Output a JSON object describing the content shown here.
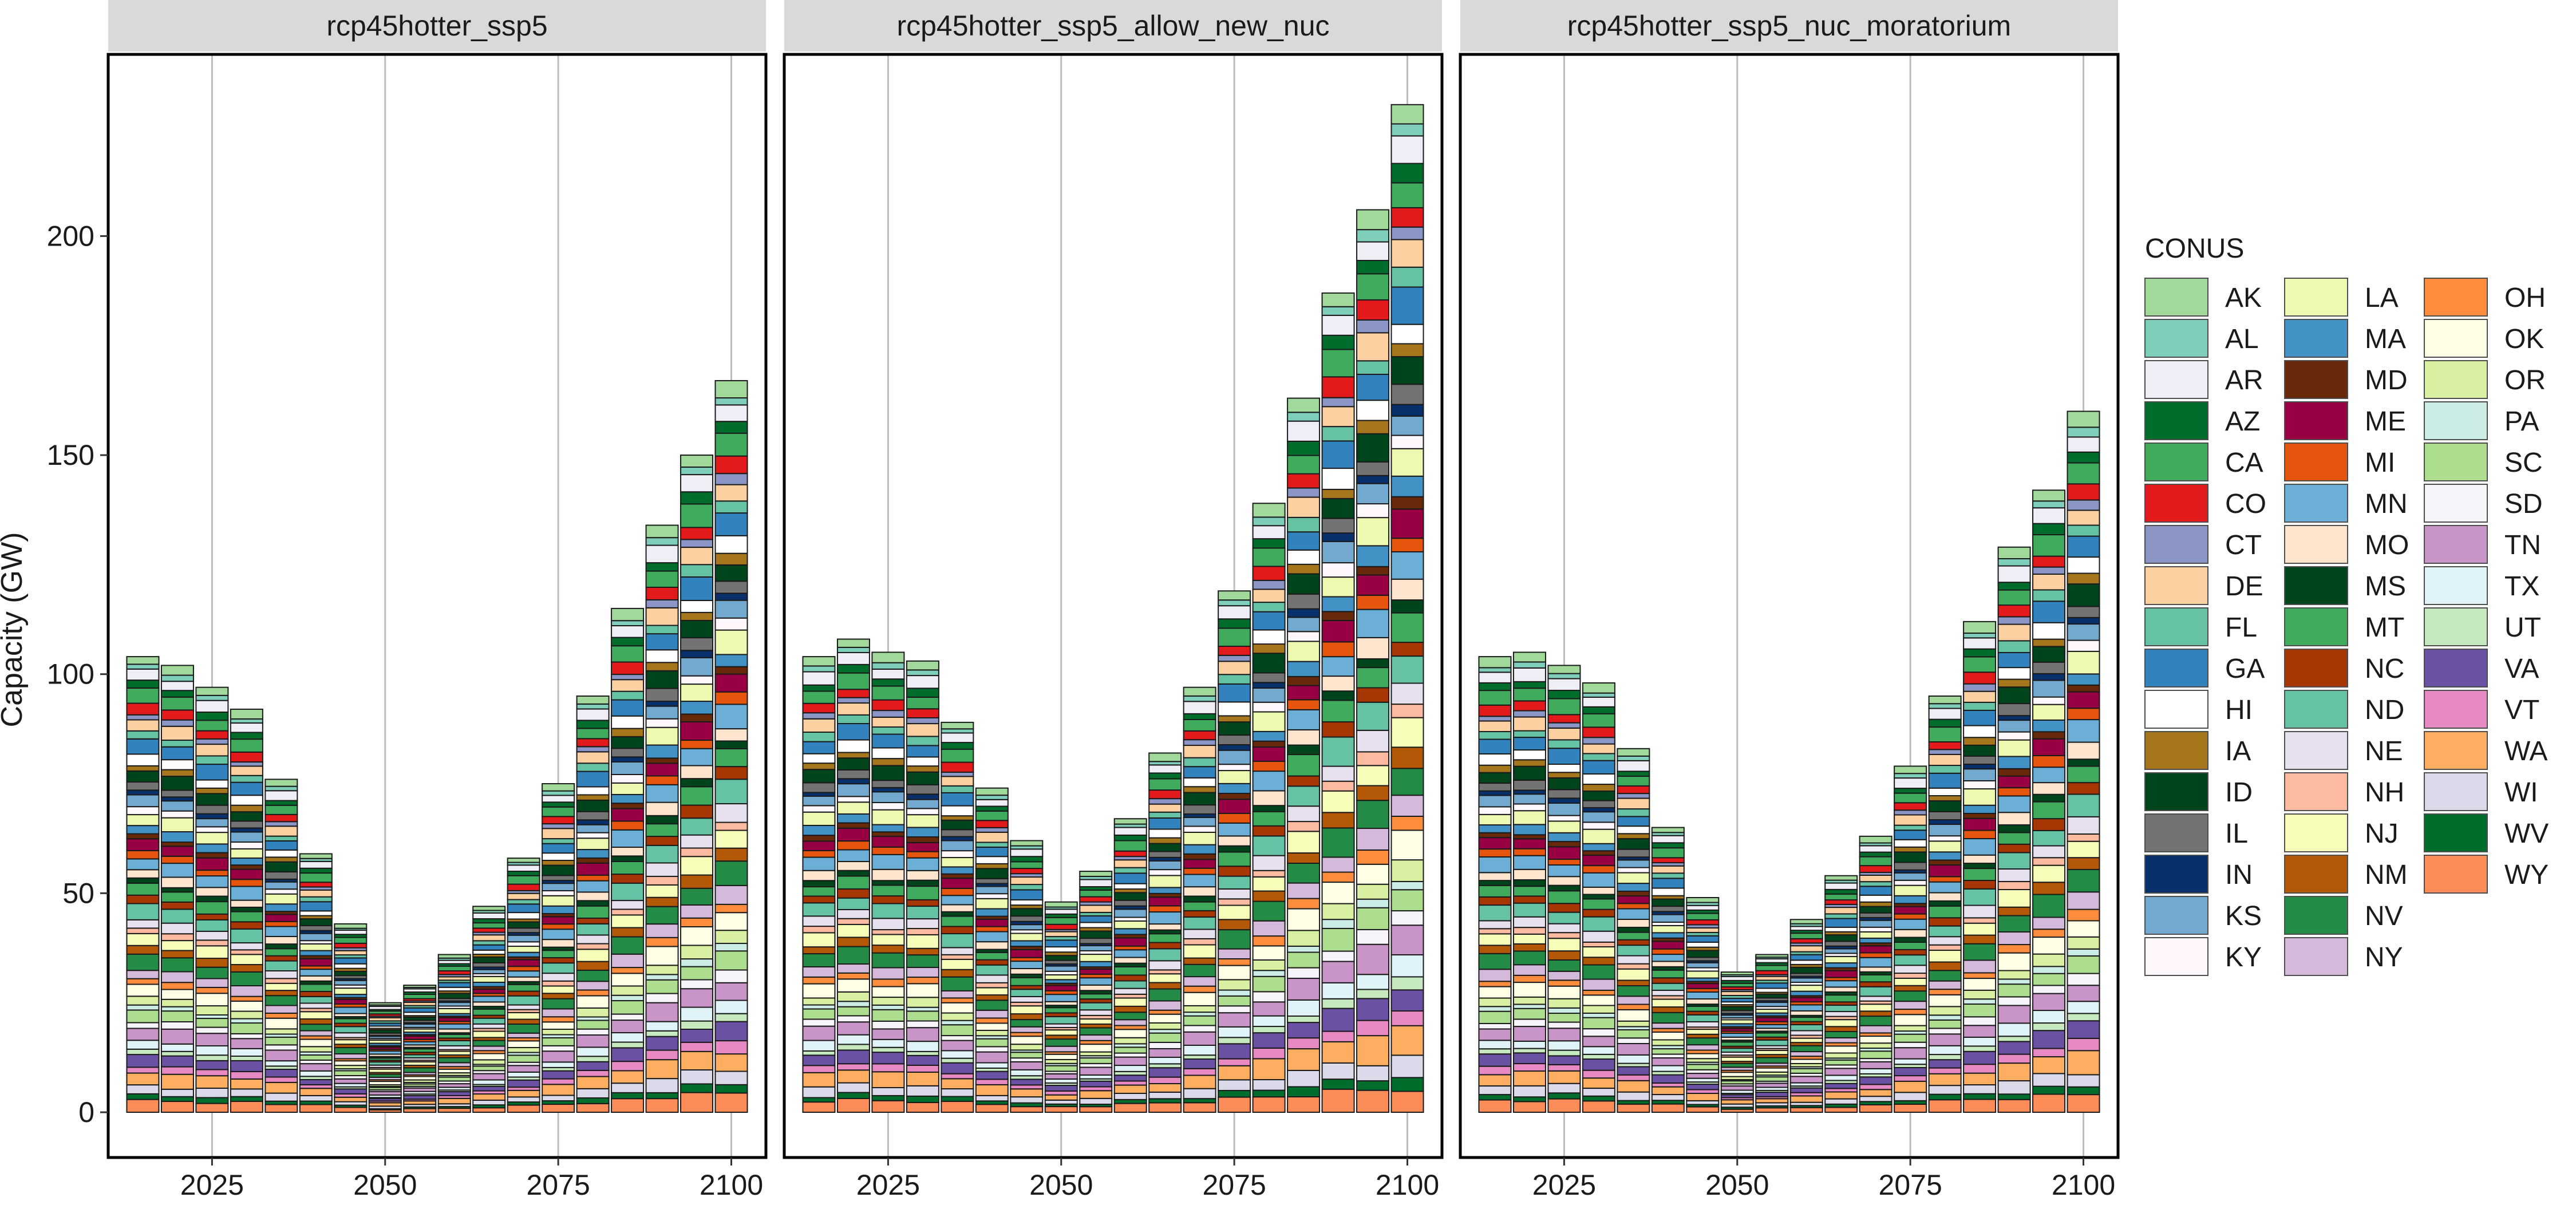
{
  "chart_data": {
    "type": "bar",
    "stacked": true,
    "ylabel": "Capacity (GW)",
    "ylim": [
      0,
      232
    ],
    "yticks": [
      0,
      50,
      100,
      150,
      200
    ],
    "xlim": [
      2010,
      2105
    ],
    "xticks": [
      2025,
      2050,
      2075,
      2100
    ],
    "x": [
      2015,
      2020,
      2025,
      2030,
      2035,
      2040,
      2045,
      2050,
      2055,
      2060,
      2065,
      2070,
      2075,
      2080,
      2085,
      2090,
      2095,
      2100
    ],
    "legend_title": "CONUS",
    "legend_position": "right",
    "states": [
      "AK",
      "AL",
      "AR",
      "AZ",
      "CA",
      "CO",
      "CT",
      "DE",
      "FL",
      "GA",
      "HI",
      "IA",
      "ID",
      "IL",
      "IN",
      "KS",
      "KY",
      "LA",
      "MA",
      "MD",
      "ME",
      "MI",
      "MN",
      "MO",
      "MS",
      "MT",
      "NC",
      "ND",
      "NE",
      "NH",
      "NJ",
      "NM",
      "NV",
      "NY",
      "OH",
      "OK",
      "OR",
      "PA",
      "SC",
      "SD",
      "TN",
      "TX",
      "UT",
      "VA",
      "VT",
      "WA",
      "WI",
      "WV",
      "WY"
    ],
    "colors": {
      "AK": "#a1d99b",
      "AL": "#7fcdbb",
      "AR": "#efedf5",
      "AZ": "#006d2c",
      "CA": "#41ab5d",
      "CO": "#e31a1c",
      "CT": "#8c96c6",
      "DE": "#fdd0a2",
      "FL": "#66c2a4",
      "GA": "#3182bd",
      "HI": "#ffffff",
      "IA": "#a6761d",
      "ID": "#00441b",
      "IL": "#737373",
      "IN": "#08306b",
      "KS": "#74a9cf",
      "KY": "#fff7fb",
      "LA": "#edf8b1",
      "MA": "#4292c6",
      "MD": "#67290a",
      "ME": "#980043",
      "MI": "#e6550d",
      "MN": "#6baed6",
      "MO": "#fee6ce",
      "MS": "#00441b",
      "MT": "#41ab5d",
      "NC": "#a63603",
      "ND": "#66c2a4",
      "NE": "#e7e1ef",
      "NH": "#fcbba1",
      "NJ": "#f7fcb9",
      "NM": "#b35806",
      "NV": "#238b45",
      "NY": "#d4b9da",
      "OH": "#fd8d3c",
      "OK": "#ffffe5",
      "OR": "#d9f0a3",
      "PA": "#ccece6",
      "SC": "#addd8e",
      "SD": "#f7f4f9",
      "TN": "#c994c7",
      "TX": "#e0f3f8",
      "UT": "#c7e9c0",
      "VA": "#6a51a3",
      "VT": "#e78ac3",
      "WA": "#fdae61",
      "WI": "#dadaeb",
      "WV": "#006d2c",
      "WY": "#fc8d59"
    },
    "panels": [
      {
        "title": "rcp45hotter_ssp5",
        "totals": [
          104,
          102,
          97,
          92,
          76,
          59,
          43,
          25,
          29,
          36,
          47,
          58,
          75,
          95,
          115,
          134,
          150,
          167
        ]
      },
      {
        "title": "rcp45hotter_ssp5_allow_new_nuc",
        "totals": [
          104,
          108,
          105,
          103,
          89,
          74,
          62,
          48,
          55,
          67,
          82,
          97,
          119,
          139,
          163,
          187,
          206,
          230
        ]
      },
      {
        "title": "rcp45hotter_ssp5_nuc_moratorium",
        "totals": [
          104,
          105,
          102,
          98,
          83,
          65,
          49,
          32,
          36,
          44,
          54,
          63,
          79,
          95,
          112,
          129,
          142,
          160
        ]
      }
    ]
  }
}
